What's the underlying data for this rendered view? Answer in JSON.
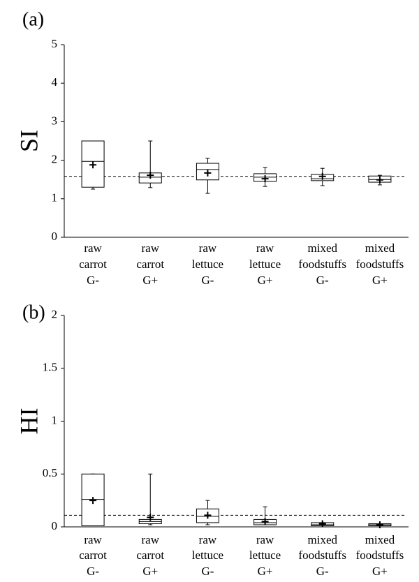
{
  "chart_data": [
    {
      "type": "box",
      "panel_label": "(a)",
      "y_label": "SI",
      "categories": [
        [
          "raw",
          "carrot",
          "G-"
        ],
        [
          "raw",
          "carrot",
          "G+"
        ],
        [
          "raw",
          "lettuce",
          "G-"
        ],
        [
          "raw",
          "lettuce",
          "G+"
        ],
        [
          "mixed",
          "foodstuffs",
          "G-"
        ],
        [
          "mixed",
          "foodstuffs",
          "G+"
        ]
      ],
      "boxes": [
        {
          "min": 1.25,
          "q1": 1.3,
          "median": 1.97,
          "q3": 2.5,
          "max": 2.5,
          "mean": 1.88
        },
        {
          "min": 1.29,
          "q1": 1.41,
          "median": 1.56,
          "q3": 1.67,
          "max": 2.5,
          "mean": 1.61
        },
        {
          "min": 1.14,
          "q1": 1.49,
          "median": 1.76,
          "q3": 1.92,
          "max": 2.05,
          "mean": 1.67
        },
        {
          "min": 1.32,
          "q1": 1.45,
          "median": 1.56,
          "q3": 1.65,
          "max": 1.81,
          "mean": 1.52
        },
        {
          "min": 1.34,
          "q1": 1.47,
          "median": 1.52,
          "q3": 1.63,
          "max": 1.79,
          "mean": 1.58
        },
        {
          "min": 1.36,
          "q1": 1.43,
          "median": 1.5,
          "q3": 1.59,
          "max": 1.61,
          "mean": 1.49
        }
      ],
      "reference_line": 1.58,
      "color": "#000000",
      "ylim": [
        0,
        5
      ],
      "yticks": [
        0,
        1,
        2,
        3,
        4,
        5
      ]
    },
    {
      "type": "box",
      "panel_label": "(b)",
      "y_label": "HI",
      "categories": [
        [
          "raw",
          "carrot",
          "G-"
        ],
        [
          "raw",
          "carrot",
          "G+"
        ],
        [
          "raw",
          "lettuce",
          "G-"
        ],
        [
          "raw",
          "lettuce",
          "G+"
        ],
        [
          "mixed",
          "foodstuffs",
          "G-"
        ],
        [
          "mixed",
          "foodstuffs",
          "G+"
        ]
      ],
      "boxes": [
        {
          "min": 0.01,
          "q1": 0.01,
          "median": 0.26,
          "q3": 0.5,
          "max": 0.5,
          "mean": 0.25
        },
        {
          "min": 0.02,
          "q1": 0.03,
          "median": 0.05,
          "q3": 0.07,
          "max": 0.5,
          "mean": 0.09
        },
        {
          "min": 0.02,
          "q1": 0.04,
          "median": 0.1,
          "q3": 0.17,
          "max": 0.25,
          "mean": 0.11
        },
        {
          "min": 0.02,
          "q1": 0.02,
          "median": 0.04,
          "q3": 0.07,
          "max": 0.19,
          "mean": 0.05
        },
        {
          "min": 0.01,
          "q1": 0.01,
          "median": 0.02,
          "q3": 0.04,
          "max": 0.04,
          "mean": 0.03
        },
        {
          "min": 0.01,
          "q1": 0.01,
          "median": 0.02,
          "q3": 0.03,
          "max": 0.03,
          "mean": 0.02
        }
      ],
      "reference_line": 0.11,
      "color": "#000000",
      "ylim": [
        0,
        2
      ],
      "yticks": [
        0,
        0.5,
        1,
        1.5,
        2
      ]
    }
  ]
}
